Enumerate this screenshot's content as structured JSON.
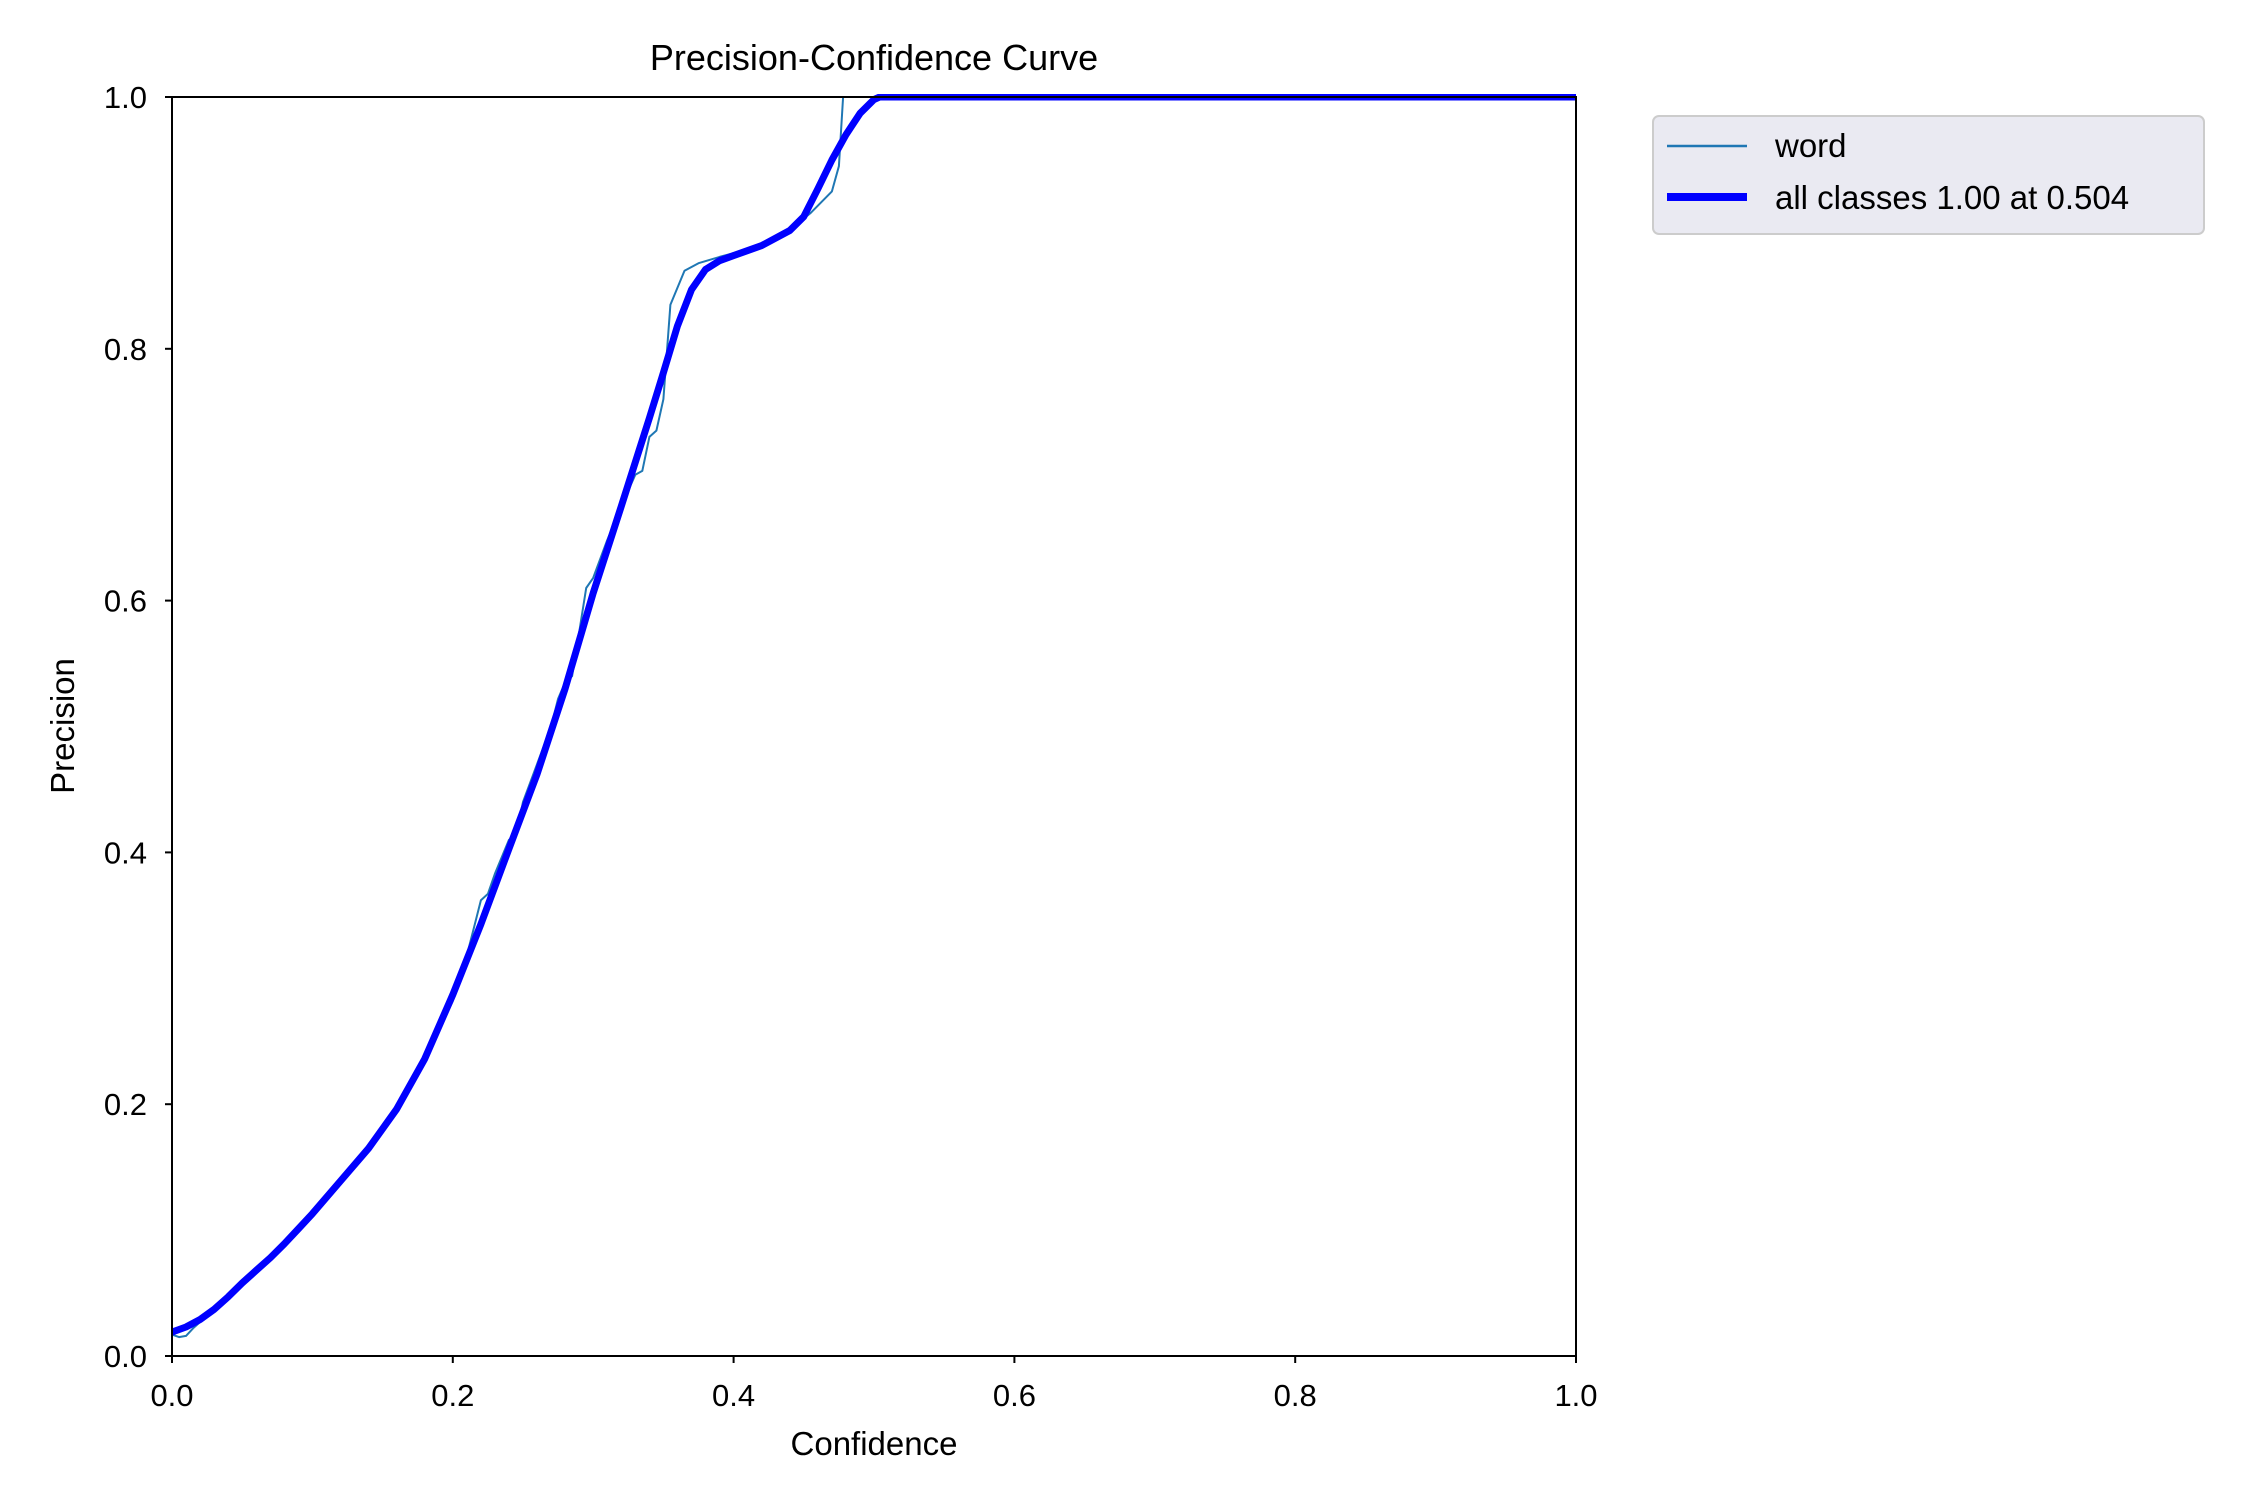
{
  "chart_data": {
    "type": "line",
    "title": "Precision-Confidence Curve",
    "xlabel": "Confidence",
    "ylabel": "Precision",
    "xlim": [
      0,
      1
    ],
    "ylim": [
      0,
      1
    ],
    "xticks": [
      "0.0",
      "0.2",
      "0.4",
      "0.6",
      "0.8",
      "1.0"
    ],
    "yticks": [
      "0.0",
      "0.2",
      "0.4",
      "0.6",
      "0.8",
      "1.0"
    ],
    "grid": false,
    "legend_position": "outside-upper-right",
    "series": [
      {
        "name": "word",
        "color": "#1f77b4",
        "style": "thin",
        "points": [
          [
            0.0,
            0.017
          ],
          [
            0.005,
            0.015
          ],
          [
            0.01,
            0.016
          ],
          [
            0.015,
            0.022
          ],
          [
            0.02,
            0.027
          ],
          [
            0.03,
            0.035
          ],
          [
            0.04,
            0.046
          ],
          [
            0.05,
            0.057
          ],
          [
            0.06,
            0.068
          ],
          [
            0.07,
            0.077
          ],
          [
            0.08,
            0.088
          ],
          [
            0.09,
            0.099
          ],
          [
            0.1,
            0.111
          ],
          [
            0.12,
            0.137
          ],
          [
            0.14,
            0.163
          ],
          [
            0.16,
            0.193
          ],
          [
            0.18,
            0.235
          ],
          [
            0.19,
            0.259
          ],
          [
            0.2,
            0.282
          ],
          [
            0.205,
            0.3
          ],
          [
            0.21,
            0.318
          ],
          [
            0.215,
            0.34
          ],
          [
            0.22,
            0.362
          ],
          [
            0.225,
            0.367
          ],
          [
            0.23,
            0.383
          ],
          [
            0.24,
            0.41
          ],
          [
            0.245,
            0.413
          ],
          [
            0.25,
            0.44
          ],
          [
            0.26,
            0.47
          ],
          [
            0.27,
            0.5
          ],
          [
            0.275,
            0.522
          ],
          [
            0.28,
            0.535
          ],
          [
            0.285,
            0.54
          ],
          [
            0.29,
            0.575
          ],
          [
            0.295,
            0.61
          ],
          [
            0.3,
            0.618
          ],
          [
            0.31,
            0.648
          ],
          [
            0.32,
            0.675
          ],
          [
            0.33,
            0.7
          ],
          [
            0.335,
            0.703
          ],
          [
            0.34,
            0.73
          ],
          [
            0.345,
            0.735
          ],
          [
            0.35,
            0.76
          ],
          [
            0.355,
            0.835
          ],
          [
            0.365,
            0.862
          ],
          [
            0.375,
            0.868
          ],
          [
            0.39,
            0.873
          ],
          [
            0.41,
            0.879
          ],
          [
            0.43,
            0.887
          ],
          [
            0.445,
            0.899
          ],
          [
            0.455,
            0.908
          ],
          [
            0.47,
            0.925
          ],
          [
            0.475,
            0.945
          ],
          [
            0.478,
            1.0
          ],
          [
            1.0,
            1.0
          ]
        ]
      },
      {
        "name": "all classes 1.00 at 0.504",
        "color": "#0000ff",
        "style": "thick",
        "points": [
          [
            0.0,
            0.019
          ],
          [
            0.01,
            0.023
          ],
          [
            0.02,
            0.029
          ],
          [
            0.03,
            0.037
          ],
          [
            0.04,
            0.047
          ],
          [
            0.05,
            0.058
          ],
          [
            0.06,
            0.068
          ],
          [
            0.07,
            0.078
          ],
          [
            0.08,
            0.089
          ],
          [
            0.09,
            0.101
          ],
          [
            0.1,
            0.113
          ],
          [
            0.12,
            0.139
          ],
          [
            0.14,
            0.165
          ],
          [
            0.16,
            0.196
          ],
          [
            0.18,
            0.236
          ],
          [
            0.2,
            0.287
          ],
          [
            0.22,
            0.343
          ],
          [
            0.24,
            0.403
          ],
          [
            0.26,
            0.462
          ],
          [
            0.28,
            0.53
          ],
          [
            0.3,
            0.606
          ],
          [
            0.32,
            0.675
          ],
          [
            0.34,
            0.745
          ],
          [
            0.35,
            0.781
          ],
          [
            0.36,
            0.818
          ],
          [
            0.37,
            0.847
          ],
          [
            0.38,
            0.863
          ],
          [
            0.39,
            0.87
          ],
          [
            0.4,
            0.874
          ],
          [
            0.42,
            0.882
          ],
          [
            0.44,
            0.894
          ],
          [
            0.45,
            0.905
          ],
          [
            0.46,
            0.927
          ],
          [
            0.47,
            0.95
          ],
          [
            0.48,
            0.97
          ],
          [
            0.49,
            0.987
          ],
          [
            0.5,
            0.998
          ],
          [
            0.504,
            1.0
          ],
          [
            1.0,
            1.0
          ]
        ]
      }
    ]
  }
}
